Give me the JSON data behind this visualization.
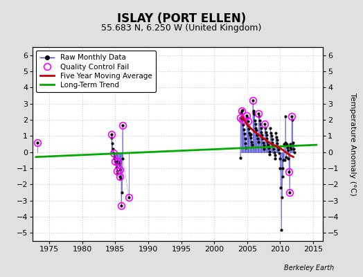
{
  "title": "ISLAY (PORT ELLEN)",
  "subtitle": "55.683 N, 6.250 W (United Kingdom)",
  "ylabel_right": "Temperature Anomaly (°C)",
  "watermark": "Berkeley Earth",
  "xlim": [
    1972.5,
    2016.5
  ],
  "ylim": [
    -5.5,
    6.5
  ],
  "yticks": [
    -5,
    -4,
    -3,
    -2,
    -1,
    0,
    1,
    2,
    3,
    4,
    5,
    6
  ],
  "xticks": [
    1975,
    1980,
    1985,
    1990,
    1995,
    2000,
    2005,
    2010,
    2015
  ],
  "bg_color": "#e0e0e0",
  "plot_bg_color": "#ffffff",
  "raw_segments": [
    [
      [
        1973.2,
        0.6
      ]
    ],
    [
      [
        1984.42,
        1.08
      ],
      [
        1984.5,
        0.9
      ],
      [
        1984.58,
        0.55
      ],
      [
        1984.67,
        0.2
      ],
      [
        1984.75,
        -0.05
      ],
      [
        1984.83,
        -0.25
      ],
      [
        1984.92,
        -0.4
      ],
      [
        1985.0,
        -0.55
      ],
      [
        1985.08,
        -0.75
      ],
      [
        1985.17,
        -0.95
      ],
      [
        1985.25,
        -1.15
      ],
      [
        1985.33,
        -1.35
      ],
      [
        1985.42,
        -0.55
      ],
      [
        1985.5,
        -0.65
      ],
      [
        1985.58,
        -0.75
      ],
      [
        1985.67,
        -1.1
      ],
      [
        1985.75,
        -1.5
      ],
      [
        1985.83,
        -1.65
      ],
      [
        1985.92,
        -3.3
      ],
      [
        1986.0,
        -2.5
      ],
      [
        1986.08,
        1.65
      ],
      [
        1986.17,
        -0.4
      ],
      [
        1987.08,
        -2.8
      ]
    ],
    [
      [
        2003.92,
        -0.35
      ],
      [
        2004.0,
        2.15
      ],
      [
        2004.08,
        2.45
      ],
      [
        2004.17,
        2.55
      ],
      [
        2004.25,
        2.6
      ],
      [
        2004.33,
        2.0
      ],
      [
        2004.42,
        1.7
      ],
      [
        2004.5,
        1.4
      ],
      [
        2004.58,
        1.15
      ],
      [
        2004.67,
        0.85
      ],
      [
        2004.75,
        0.55
      ],
      [
        2004.83,
        0.3
      ],
      [
        2004.92,
        2.25
      ],
      [
        2005.0,
        2.15
      ],
      [
        2005.08,
        1.9
      ],
      [
        2005.17,
        1.65
      ],
      [
        2005.25,
        1.45
      ],
      [
        2005.33,
        1.2
      ],
      [
        2005.42,
        1.05
      ],
      [
        2005.5,
        1.1
      ],
      [
        2005.58,
        0.9
      ],
      [
        2005.67,
        0.65
      ],
      [
        2005.75,
        0.45
      ],
      [
        2005.83,
        3.2
      ],
      [
        2005.92,
        2.55
      ],
      [
        2006.0,
        2.45
      ],
      [
        2006.08,
        2.35
      ],
      [
        2006.17,
        1.95
      ],
      [
        2006.25,
        1.75
      ],
      [
        2006.33,
        1.5
      ],
      [
        2006.42,
        1.35
      ],
      [
        2006.5,
        1.05
      ],
      [
        2006.58,
        0.85
      ],
      [
        2006.67,
        0.65
      ],
      [
        2006.75,
        2.4
      ],
      [
        2006.83,
        2.2
      ],
      [
        2006.92,
        1.95
      ],
      [
        2007.0,
        1.75
      ],
      [
        2007.08,
        1.5
      ],
      [
        2007.17,
        1.25
      ],
      [
        2007.25,
        1.05
      ],
      [
        2007.33,
        0.85
      ],
      [
        2007.42,
        0.6
      ],
      [
        2007.5,
        0.4
      ],
      [
        2007.58,
        0.2
      ],
      [
        2007.67,
        1.75
      ],
      [
        2007.75,
        1.5
      ],
      [
        2007.83,
        1.25
      ],
      [
        2007.92,
        1.05
      ],
      [
        2008.0,
        0.85
      ],
      [
        2008.08,
        0.65
      ],
      [
        2008.17,
        0.45
      ],
      [
        2008.25,
        0.25
      ],
      [
        2008.33,
        0.05
      ],
      [
        2008.42,
        -0.15
      ],
      [
        2008.5,
        1.5
      ],
      [
        2008.58,
        1.2
      ],
      [
        2008.67,
        1.0
      ],
      [
        2008.75,
        0.8
      ],
      [
        2008.83,
        0.6
      ],
      [
        2008.92,
        0.4
      ],
      [
        2009.0,
        0.2
      ],
      [
        2009.08,
        0.0
      ],
      [
        2009.17,
        -0.2
      ],
      [
        2009.25,
        -0.4
      ],
      [
        2009.33,
        1.2
      ],
      [
        2009.42,
        0.95
      ],
      [
        2009.5,
        0.75
      ],
      [
        2009.58,
        0.55
      ],
      [
        2009.67,
        0.35
      ],
      [
        2009.75,
        0.15
      ],
      [
        2009.83,
        -0.05
      ],
      [
        2009.92,
        -0.4
      ],
      [
        2010.0,
        -1.0
      ],
      [
        2010.08,
        -2.2
      ],
      [
        2010.17,
        -4.8
      ],
      [
        2010.25,
        -2.8
      ],
      [
        2010.33,
        -1.5
      ],
      [
        2010.42,
        -1.0
      ],
      [
        2010.5,
        -0.5
      ],
      [
        2010.58,
        0.5
      ],
      [
        2010.67,
        -0.5
      ],
      [
        2010.75,
        2.2
      ],
      [
        2010.83,
        0.6
      ],
      [
        2010.92,
        -0.3
      ],
      [
        2011.0,
        0.5
      ],
      [
        2011.08,
        0.3
      ],
      [
        2011.17,
        0.1
      ],
      [
        2011.25,
        -0.4
      ],
      [
        2011.33,
        -1.2
      ],
      [
        2011.42,
        -2.5
      ],
      [
        2011.5,
        0.5
      ],
      [
        2011.58,
        0.3
      ],
      [
        2011.67,
        0.2
      ],
      [
        2011.75,
        2.2
      ],
      [
        2011.83,
        2.0
      ],
      [
        2011.92,
        0.6
      ],
      [
        2012.0,
        0.4
      ],
      [
        2012.08,
        0.2
      ],
      [
        2012.17,
        0.0
      ]
    ]
  ],
  "qc_fail_points": [
    [
      1973.2,
      0.6
    ],
    [
      1984.42,
      1.08
    ],
    [
      1984.75,
      -0.05
    ],
    [
      1985.0,
      -0.55
    ],
    [
      1985.25,
      -1.15
    ],
    [
      1985.42,
      -0.55
    ],
    [
      1985.67,
      -1.1
    ],
    [
      1985.75,
      -1.5
    ],
    [
      1985.92,
      -3.3
    ],
    [
      1986.08,
      1.65
    ],
    [
      1987.08,
      -2.8
    ],
    [
      2004.0,
      2.15
    ],
    [
      2004.17,
      2.55
    ],
    [
      2004.33,
      2.0
    ],
    [
      2004.92,
      2.25
    ],
    [
      2005.08,
      1.9
    ],
    [
      2005.83,
      3.2
    ],
    [
      2006.75,
      2.4
    ],
    [
      2007.67,
      1.75
    ],
    [
      2011.33,
      -1.2
    ],
    [
      2011.42,
      -2.5
    ],
    [
      2011.75,
      2.2
    ]
  ],
  "moving_avg_x": [
    2004.25,
    2005.0,
    2005.5,
    2006.0,
    2006.5,
    2007.0,
    2007.5,
    2008.0,
    2008.5,
    2009.0,
    2009.5,
    2010.0,
    2010.5,
    2011.0,
    2011.5,
    2012.0
  ],
  "moving_avg_y": [
    2.2,
    1.7,
    1.5,
    1.3,
    1.15,
    1.0,
    0.85,
    0.7,
    0.55,
    0.45,
    0.35,
    0.25,
    0.1,
    -0.05,
    -0.2,
    -0.3
  ],
  "trend_x": [
    1973.0,
    2015.5
  ],
  "trend_y": [
    -0.3,
    0.45
  ],
  "grid_color": "#cccccc",
  "raw_color": "#3333cc",
  "raw_dot_color": "#000000",
  "qc_color": "#ff00ff",
  "moving_avg_color": "#cc0000",
  "trend_color": "#00aa00",
  "title_fontsize": 12,
  "subtitle_fontsize": 9,
  "tick_fontsize": 8,
  "legend_fontsize": 7.5,
  "watermark_fontsize": 7
}
